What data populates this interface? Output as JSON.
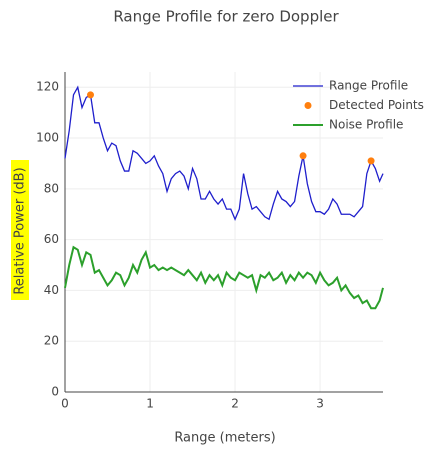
{
  "chart_data": {
    "type": "line",
    "title": "Range Profile for zero Doppler",
    "xlabel": "Range (meters)",
    "ylabel": "Relative Power (dB)",
    "x": [
      0,
      0.05,
      0.1,
      0.15,
      0.2,
      0.25,
      0.3,
      0.35,
      0.4,
      0.45,
      0.5,
      0.55,
      0.6,
      0.65,
      0.7,
      0.75,
      0.8,
      0.85,
      0.9,
      0.95,
      1.0,
      1.05,
      1.1,
      1.15,
      1.2,
      1.25,
      1.3,
      1.35,
      1.4,
      1.45,
      1.5,
      1.55,
      1.6,
      1.65,
      1.7,
      1.75,
      1.8,
      1.85,
      1.9,
      1.95,
      2.0,
      2.05,
      2.1,
      2.15,
      2.2,
      2.25,
      2.3,
      2.35,
      2.4,
      2.45,
      2.5,
      2.55,
      2.6,
      2.65,
      2.7,
      2.75,
      2.8,
      2.85,
      2.9,
      2.95,
      3.0,
      3.05,
      3.1,
      3.15,
      3.2,
      3.25,
      3.3,
      3.35,
      3.4,
      3.45,
      3.5,
      3.55,
      3.6,
      3.65,
      3.7,
      3.74
    ],
    "series": [
      {
        "name": "Range Profile",
        "color": "#1f1fcc",
        "mode": "lines",
        "values": [
          92,
          103,
          117,
          120,
          112,
          116,
          117,
          106,
          106,
          100,
          95,
          98,
          97,
          91,
          87,
          87,
          95,
          94,
          92,
          90,
          91,
          93,
          89,
          86,
          79,
          84,
          86,
          87,
          85,
          80,
          88,
          84,
          76,
          76,
          79,
          76,
          74,
          76,
          72,
          72,
          68,
          72,
          86,
          78,
          72,
          73,
          71,
          69,
          68,
          74,
          79,
          76,
          75,
          73,
          75,
          85,
          93,
          82,
          75,
          71,
          71,
          70,
          72,
          76,
          74,
          70,
          70,
          70,
          69,
          71,
          73,
          86,
          91,
          88,
          83,
          86
        ]
      },
      {
        "name": "Detected Points",
        "color": "#ff7f0e",
        "mode": "markers",
        "x": [
          0.3,
          2.8,
          3.6
        ],
        "values": [
          117,
          93,
          91
        ]
      },
      {
        "name": "Noise Profile",
        "color": "#2ca02c",
        "mode": "lines",
        "values": [
          41,
          50,
          57,
          56,
          50,
          55,
          54,
          47,
          48,
          45,
          42,
          44,
          47,
          46,
          42,
          45,
          50,
          47,
          52,
          55,
          49,
          50,
          48,
          49,
          48,
          49,
          48,
          47,
          46,
          48,
          46,
          44,
          47,
          43,
          46,
          44,
          46,
          42,
          47,
          45,
          44,
          47,
          46,
          45,
          46,
          40,
          46,
          45,
          47,
          44,
          45,
          47,
          43,
          46,
          44,
          47,
          45,
          47,
          46,
          43,
          47,
          44,
          42,
          43,
          45,
          40,
          42,
          39,
          37,
          38,
          35,
          36,
          33,
          33,
          36,
          41
        ]
      }
    ],
    "xlim": [
      0,
      3.74
    ],
    "ylim": [
      0,
      126
    ],
    "xticks": [
      0,
      1,
      2,
      3
    ],
    "yticks": [
      0,
      20,
      40,
      60,
      80,
      100,
      120
    ],
    "grid": true,
    "legend": "top-right"
  }
}
